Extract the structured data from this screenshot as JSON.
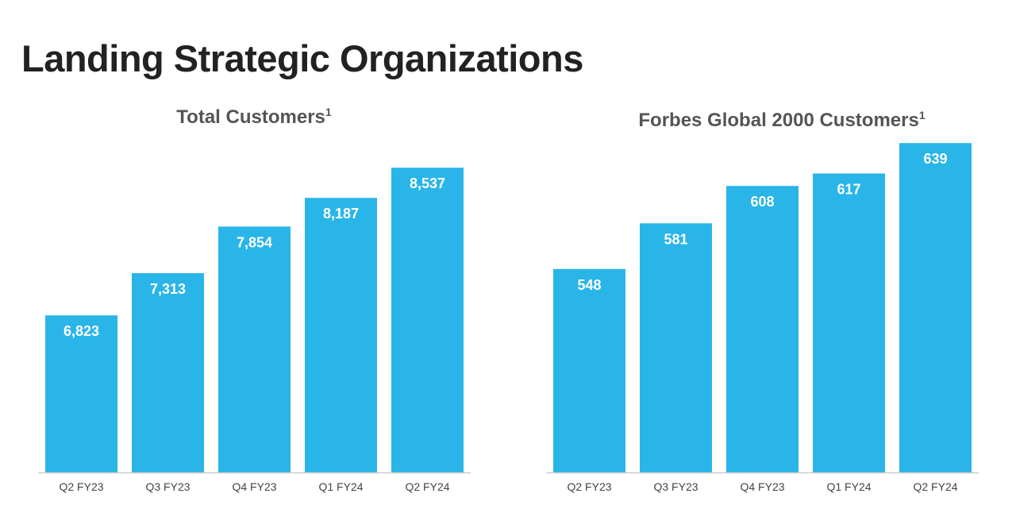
{
  "page": {
    "title": "Landing Strategic Organizations"
  },
  "colors": {
    "bar": "#29b5e8",
    "axis": "#cccccc",
    "label": "#ffffff",
    "tick": "#444444"
  },
  "chart_data": [
    {
      "type": "bar",
      "title": "Total Customers",
      "title_superscript": "1",
      "categories": [
        "Q2 FY23",
        "Q3 FY23",
        "Q4 FY23",
        "Q1 FY24",
        "Q2 FY24"
      ],
      "values": [
        6823,
        7313,
        7854,
        8187,
        8537
      ],
      "data_labels": [
        "6,823",
        "7,313",
        "7,854",
        "8,187",
        "8,537"
      ],
      "ylim": [
        5000,
        9000
      ],
      "grid": false
    },
    {
      "type": "bar",
      "title": "Forbes Global 2000 Customers",
      "title_superscript": "1",
      "categories": [
        "Q2 FY23",
        "Q3 FY23",
        "Q4 FY23",
        "Q1 FY24",
        "Q2 FY24"
      ],
      "values": [
        548,
        581,
        608,
        617,
        639
      ],
      "data_labels": [
        "548",
        "581",
        "608",
        "617",
        "639"
      ],
      "ylim": [
        401,
        650
      ],
      "grid": false
    }
  ]
}
